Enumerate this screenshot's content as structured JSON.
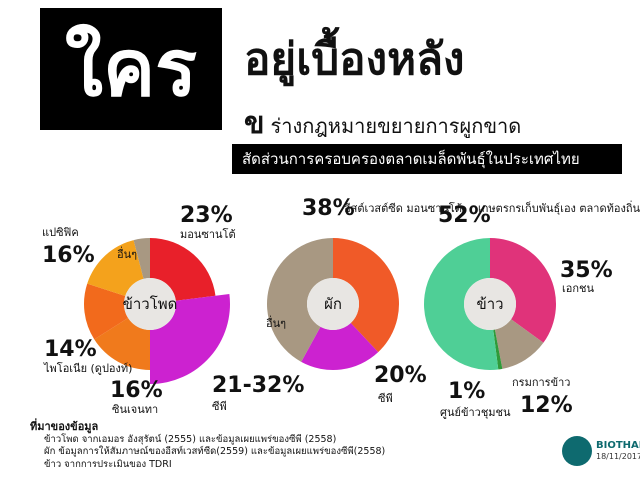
{
  "header": {
    "title_block": "ใคร",
    "title_main": "อยู่เบื้องหลัง",
    "title_sub_big": "ข",
    "title_sub_rest": "ร่างกฎหมายขยายการผูกขาด",
    "subtitle": "สัดส่วนการครอบครองตลาดเมล็ดพันธุ์ในประเทศไทย"
  },
  "colors": {
    "monsanto_red": "#e8202a",
    "cp_magenta": "#cc22d0",
    "pacific_orange": "#f4a21c",
    "pioneer_orange": "#f26a1c",
    "syngenta_orange": "#f07a1c",
    "others_tan": "#a89882",
    "east_west": "#f05a28",
    "farmer_green": "#4fcf96",
    "gradient_pink": "#e0337a",
    "rice_dept_tan": "#a89882",
    "community_green": "#2f9a3a"
  },
  "chart_data": [
    {
      "type": "pie",
      "center_label": "ข้าวโพด",
      "slices": [
        {
          "name": "มอนซานโต้",
          "value": 23,
          "label": "23%"
        },
        {
          "name": "ซีพี",
          "value": 27,
          "label": "21-32%"
        },
        {
          "name": "ซินเจนทา",
          "value": 16,
          "label": "16%"
        },
        {
          "name": "ไพโอเนีย (ดูปองท์)",
          "value": 14,
          "label": "14%"
        },
        {
          "name": "แปซิฟิค",
          "value": 16,
          "label": "16%"
        },
        {
          "name": "อื่นๆ",
          "value": 4,
          "label": ""
        }
      ]
    },
    {
      "type": "pie",
      "center_label": "ผัก",
      "slices": [
        {
          "name": "อีสต์เวสต์ซีด มอนซานโต้",
          "value": 38,
          "label": "38%"
        },
        {
          "name": "ซีพี",
          "value": 20,
          "label": "20%"
        },
        {
          "name": "อื่นๆ",
          "value": 42,
          "label": ""
        }
      ]
    },
    {
      "type": "pie",
      "center_label": "ข้าว",
      "slices": [
        {
          "name": "เอกชน",
          "value": 35,
          "label": "35%"
        },
        {
          "name": "กรมการข้าว",
          "value": 12,
          "label": "12%"
        },
        {
          "name": "ศูนย์ข้าวชุมชน",
          "value": 1,
          "label": "1%"
        },
        {
          "name": "เกษตรกรเก็บพันธุ์เอง ตลาดท้องถิ่น",
          "value": 52,
          "label": "52%"
        }
      ]
    }
  ],
  "source": {
    "heading": "ที่มาของข้อมูล",
    "lines": [
      "ข้าวโพด จากเอมอร อังสุรัตน์ (2555) และข้อมูลเผยแพร่ของซีพี (2558)",
      "ผัก ข้อมูลการให้สัมภาษณ์ของอีสท์เวสท์ซีด(2559) และข้อมูลเผยแพร่ของซีพี(2558)",
      "ข้าว จากการประเมินของ TDRI"
    ]
  },
  "logo": {
    "name": "BIOTHAI",
    "date": "18/11/2017"
  }
}
